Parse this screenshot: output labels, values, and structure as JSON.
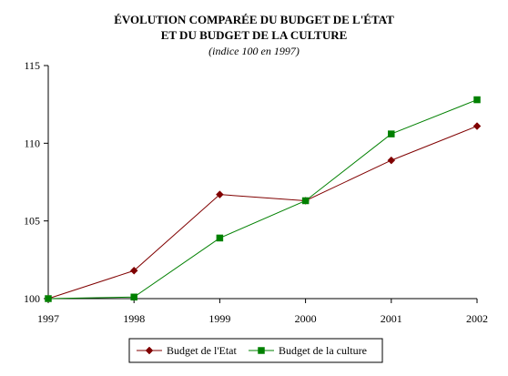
{
  "chart_data": {
    "type": "line",
    "title_lines": [
      "ÉVOLUTION COMPARÉE DU BUDGET DE L'ÉTAT",
      "ET DU BUDGET DE LA CULTURE"
    ],
    "subtitle": "(indice 100 en 1997)",
    "xlabel": "",
    "ylabel": "",
    "categories": [
      "1997",
      "1998",
      "1999",
      "2000",
      "2001",
      "2002"
    ],
    "y_ticks": [
      "100",
      "105",
      "110",
      "115"
    ],
    "ylim": [
      100,
      115
    ],
    "grid": false,
    "legend_position": "bottom",
    "series": [
      {
        "name": "Budget de l'Etat",
        "values": [
          100.0,
          101.8,
          106.7,
          106.3,
          108.9,
          111.1
        ],
        "color": "#800000",
        "marker": "diamond"
      },
      {
        "name": "Budget de la culture",
        "values": [
          100.0,
          100.1,
          103.9,
          106.3,
          110.6,
          112.8
        ],
        "color": "#008000",
        "marker": "square"
      }
    ]
  }
}
